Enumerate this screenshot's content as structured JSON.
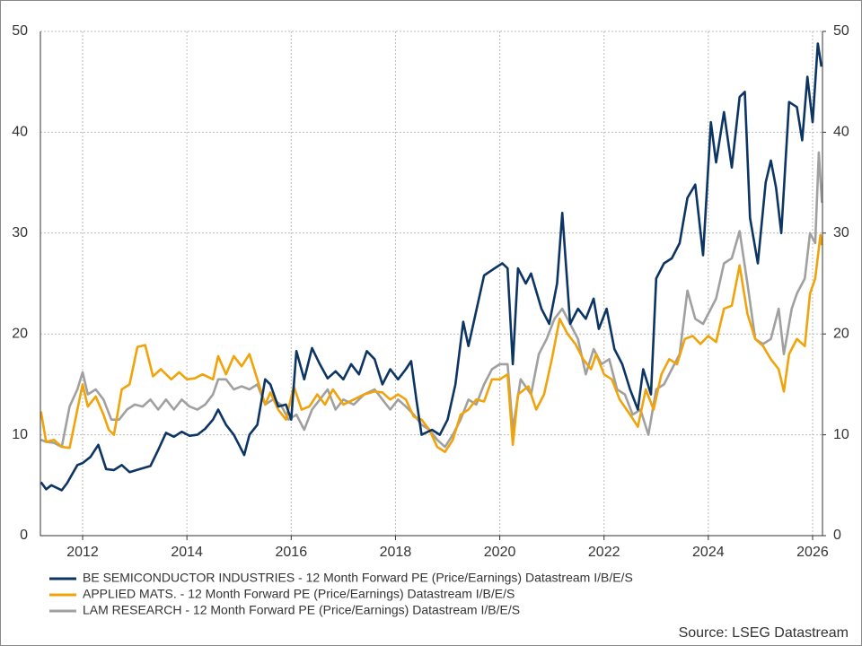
{
  "chart_data": {
    "type": "line",
    "xlim": [
      2011.19,
      2026.19
    ],
    "xticks": [
      2012,
      2014,
      2016,
      2018,
      2020,
      2022,
      2024,
      2026
    ],
    "ylim": [
      0,
      50
    ],
    "yticks": [
      0,
      10,
      20,
      30,
      40,
      50
    ],
    "y2lim": [
      0,
      50
    ],
    "y2ticks": [
      0,
      10,
      20,
      30,
      40,
      50
    ],
    "grid": true,
    "source": "Source: LSEG Datastream",
    "series": [
      {
        "name": "BE SEMICONDUCTOR INDUSTRIES - 12 Month Forward PE (Price/Earnings) Datastream I/B/E/S",
        "color": "#0d3563",
        "x": [
          2011.2,
          2011.3,
          2011.4,
          2011.6,
          2011.7,
          2011.9,
          2012.0,
          2012.15,
          2012.3,
          2012.45,
          2012.6,
          2012.75,
          2012.9,
          2013.1,
          2013.3,
          2013.45,
          2013.6,
          2013.75,
          2013.9,
          2014.05,
          2014.2,
          2014.35,
          2014.5,
          2014.6,
          2014.75,
          2014.9,
          2015.0,
          2015.1,
          2015.2,
          2015.35,
          2015.5,
          2015.6,
          2015.75,
          2015.9,
          2016.0,
          2016.1,
          2016.25,
          2016.4,
          2016.55,
          2016.7,
          2016.85,
          2017.0,
          2017.15,
          2017.3,
          2017.45,
          2017.6,
          2017.75,
          2017.9,
          2018.05,
          2018.2,
          2018.3,
          2018.4,
          2018.5,
          2018.7,
          2018.85,
          2019.0,
          2019.15,
          2019.3,
          2019.4,
          2019.55,
          2019.7,
          2019.9,
          2020.05,
          2020.15,
          2020.25,
          2020.35,
          2020.5,
          2020.6,
          2020.8,
          2020.95,
          2021.1,
          2021.2,
          2021.35,
          2021.5,
          2021.65,
          2021.8,
          2021.9,
          2022.05,
          2022.2,
          2022.35,
          2022.5,
          2022.65,
          2022.75,
          2022.9,
          2023.0,
          2023.15,
          2023.3,
          2023.45,
          2023.6,
          2023.75,
          2023.9,
          2024.05,
          2024.15,
          2024.3,
          2024.45,
          2024.6,
          2024.7,
          2024.8,
          2024.95,
          2025.1,
          2025.2,
          2025.3,
          2025.4,
          2025.55,
          2025.7,
          2025.8,
          2025.9,
          2026.0,
          2026.1,
          2026.17
        ],
        "values": [
          5.3,
          4.6,
          5.0,
          4.5,
          5.2,
          7.0,
          7.2,
          7.8,
          9.0,
          6.6,
          6.5,
          7.0,
          6.3,
          6.6,
          6.9,
          8.5,
          10.2,
          9.8,
          10.3,
          9.9,
          10.0,
          10.6,
          11.5,
          12.5,
          11.0,
          10.0,
          9.0,
          8.0,
          10.0,
          11.0,
          15.5,
          15.0,
          12.8,
          13.0,
          11.5,
          18.3,
          15.5,
          18.6,
          17.0,
          15.6,
          16.3,
          15.5,
          17.0,
          16.0,
          18.3,
          17.5,
          15.0,
          16.5,
          15.5,
          16.5,
          17.3,
          13.5,
          10.0,
          10.5,
          10.0,
          11.5,
          15.0,
          21.2,
          18.8,
          22.3,
          25.8,
          26.5,
          27.0,
          26.5,
          17.0,
          26.5,
          25.0,
          26.0,
          22.5,
          21.0,
          25.0,
          32.0,
          21.0,
          22.5,
          21.5,
          23.5,
          20.5,
          22.5,
          18.5,
          17.0,
          14.5,
          12.5,
          16.5,
          14.0,
          25.5,
          27.0,
          27.5,
          29.0,
          33.5,
          34.8,
          27.8,
          41.0,
          37.0,
          42.0,
          36.5,
          43.5,
          44.0,
          31.5,
          27.0,
          35.0,
          37.2,
          34.5,
          30.0,
          43.0,
          42.5,
          39.2,
          45.5,
          41.0,
          48.8,
          46.5
        ]
      },
      {
        "name": "APPLIED MATS. - 12 Month Forward PE (Price/Earnings) Datastream I/B/E/S",
        "color": "#f0a30a",
        "x": [
          2011.2,
          2011.3,
          2011.45,
          2011.6,
          2011.75,
          2011.9,
          2012.0,
          2012.1,
          2012.25,
          2012.4,
          2012.5,
          2012.6,
          2012.75,
          2012.9,
          2013.05,
          2013.2,
          2013.35,
          2013.5,
          2013.7,
          2013.85,
          2014.0,
          2014.15,
          2014.3,
          2014.5,
          2014.6,
          2014.75,
          2014.9,
          2015.05,
          2015.2,
          2015.35,
          2015.5,
          2015.6,
          2015.75,
          2015.9,
          2016.05,
          2016.2,
          2016.35,
          2016.5,
          2016.65,
          2016.8,
          2017.0,
          2017.2,
          2017.4,
          2017.6,
          2017.75,
          2017.9,
          2018.05,
          2018.2,
          2018.35,
          2018.5,
          2018.65,
          2018.8,
          2018.95,
          2019.1,
          2019.25,
          2019.4,
          2019.55,
          2019.7,
          2019.85,
          2020.0,
          2020.15,
          2020.25,
          2020.35,
          2020.55,
          2020.7,
          2020.85,
          2021.0,
          2021.15,
          2021.3,
          2021.45,
          2021.6,
          2021.75,
          2021.85,
          2022.0,
          2022.15,
          2022.3,
          2022.5,
          2022.65,
          2022.8,
          2022.95,
          2023.1,
          2023.25,
          2023.4,
          2023.55,
          2023.7,
          2023.85,
          2024.0,
          2024.15,
          2024.3,
          2024.45,
          2024.6,
          2024.75,
          2024.9,
          2025.05,
          2025.2,
          2025.35,
          2025.45,
          2025.55,
          2025.7,
          2025.85,
          2025.95,
          2026.05,
          2026.15,
          2026.18
        ],
        "values": [
          12.3,
          9.3,
          9.5,
          8.8,
          8.7,
          12.5,
          15.0,
          12.8,
          13.8,
          12.0,
          10.5,
          10.0,
          14.5,
          15.0,
          18.7,
          18.9,
          15.8,
          16.5,
          15.5,
          16.2,
          15.5,
          15.6,
          16.0,
          15.5,
          17.8,
          16.0,
          17.8,
          16.8,
          18.0,
          15.5,
          13.0,
          14.2,
          12.5,
          11.5,
          14.8,
          12.5,
          12.8,
          14.0,
          13.0,
          14.5,
          13.0,
          13.5,
          14.0,
          14.3,
          14.2,
          13.5,
          14.0,
          13.5,
          11.8,
          11.5,
          10.5,
          8.8,
          8.3,
          9.5,
          12.0,
          12.5,
          13.5,
          13.3,
          15.5,
          15.5,
          16.0,
          9.0,
          14.0,
          14.8,
          12.5,
          14.0,
          17.5,
          21.5,
          20.0,
          19.0,
          17.5,
          16.5,
          18.0,
          16.0,
          15.5,
          13.5,
          12.0,
          10.8,
          14.5,
          12.5,
          16.0,
          17.5,
          17.0,
          19.5,
          19.8,
          19.0,
          19.8,
          19.2,
          22.5,
          22.8,
          26.8,
          22.0,
          19.5,
          18.8,
          17.5,
          16.5,
          14.3,
          18.0,
          19.5,
          18.8,
          24.0,
          25.5,
          29.8,
          28.8
        ]
      },
      {
        "name": "LAM RESEARCH - 12 Month Forward PE (Price/Earnings) Datastream I/B/E/S",
        "color": "#a0a0a0",
        "x": [
          2011.2,
          2011.3,
          2011.45,
          2011.6,
          2011.75,
          2011.9,
          2012.0,
          2012.1,
          2012.25,
          2012.4,
          2012.55,
          2012.7,
          2012.85,
          2013.0,
          2013.15,
          2013.3,
          2013.45,
          2013.6,
          2013.75,
          2013.9,
          2014.05,
          2014.2,
          2014.35,
          2014.5,
          2014.6,
          2014.75,
          2014.9,
          2015.05,
          2015.2,
          2015.35,
          2015.5,
          2015.65,
          2015.8,
          2015.95,
          2016.1,
          2016.25,
          2016.4,
          2016.55,
          2016.7,
          2016.85,
          2017.0,
          2017.2,
          2017.4,
          2017.6,
          2017.75,
          2017.9,
          2018.05,
          2018.2,
          2018.35,
          2018.5,
          2018.65,
          2018.8,
          2018.95,
          2019.1,
          2019.25,
          2019.4,
          2019.55,
          2019.7,
          2019.85,
          2020.0,
          2020.15,
          2020.25,
          2020.4,
          2020.6,
          2020.75,
          2020.9,
          2021.05,
          2021.2,
          2021.35,
          2021.5,
          2021.65,
          2021.8,
          2021.95,
          2022.1,
          2022.25,
          2022.4,
          2022.55,
          2022.7,
          2022.85,
          2023.0,
          2023.15,
          2023.3,
          2023.45,
          2023.6,
          2023.75,
          2023.9,
          2024.05,
          2024.15,
          2024.3,
          2024.45,
          2024.6,
          2024.75,
          2024.9,
          2025.05,
          2025.2,
          2025.35,
          2025.45,
          2025.6,
          2025.7,
          2025.85,
          2025.95,
          2026.05,
          2026.12,
          2026.18
        ],
        "values": [
          9.5,
          9.3,
          9.2,
          8.8,
          12.8,
          14.5,
          16.2,
          14.0,
          14.5,
          13.5,
          11.5,
          11.5,
          12.5,
          13.0,
          12.8,
          13.5,
          12.5,
          13.5,
          12.5,
          13.5,
          12.8,
          12.5,
          13.0,
          14.0,
          15.5,
          15.5,
          14.5,
          14.8,
          14.5,
          15.0,
          13.0,
          13.5,
          13.0,
          11.5,
          12.0,
          10.5,
          12.5,
          13.5,
          14.5,
          12.5,
          13.5,
          13.0,
          14.0,
          14.5,
          13.5,
          12.5,
          13.5,
          12.8,
          12.0,
          11.0,
          10.5,
          9.5,
          8.8,
          10.0,
          11.5,
          13.5,
          13.0,
          15.0,
          16.5,
          17.0,
          17.0,
          10.5,
          15.5,
          14.0,
          18.0,
          19.5,
          21.5,
          22.5,
          21.0,
          19.5,
          16.0,
          18.5,
          17.0,
          17.5,
          14.5,
          14.0,
          12.0,
          12.5,
          10.0,
          14.5,
          15.0,
          16.5,
          18.0,
          24.3,
          21.5,
          21.0,
          22.5,
          23.5,
          27.0,
          27.5,
          30.2,
          25.0,
          19.5,
          19.0,
          19.5,
          22.5,
          18.0,
          22.5,
          24.0,
          25.5,
          30.0,
          29.0,
          38.0,
          33.0
        ]
      }
    ]
  }
}
